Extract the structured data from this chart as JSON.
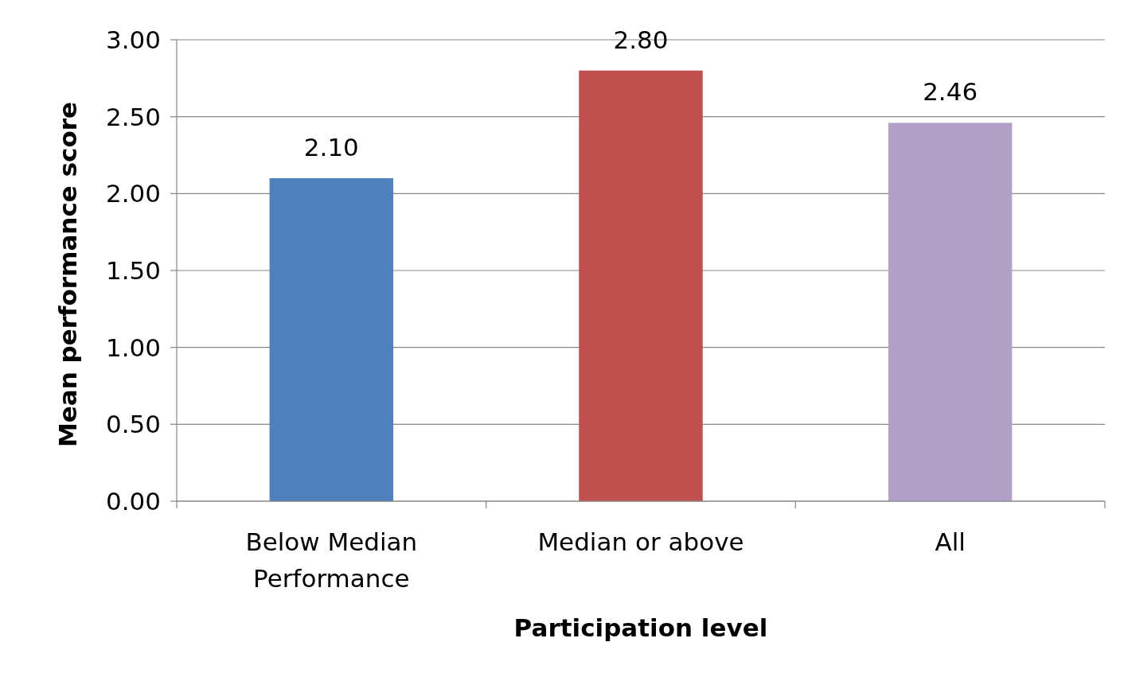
{
  "chart_data": {
    "type": "bar",
    "xlabel": "Participation level",
    "ylabel": "Mean performance score",
    "categories": [
      "Below Median Performance",
      "Median or above",
      "All"
    ],
    "values": [
      2.1,
      2.8,
      2.46
    ],
    "colors": [
      "#4f81bd",
      "#c0504d",
      "#b2a1c7"
    ],
    "value_labels": [
      "2.10",
      "2.80",
      "2.46"
    ],
    "ylim": [
      0,
      3
    ],
    "yticks": [
      {
        "value": 0,
        "label": "0.00"
      },
      {
        "value": 0.5,
        "label": "0.50"
      },
      {
        "value": 1,
        "label": "1.00"
      },
      {
        "value": 1.5,
        "label": "1.50"
      },
      {
        "value": 2,
        "label": "2.00"
      },
      {
        "value": 2.5,
        "label": "2.50"
      },
      {
        "value": 3,
        "label": "3.00"
      }
    ],
    "grid": "y"
  }
}
